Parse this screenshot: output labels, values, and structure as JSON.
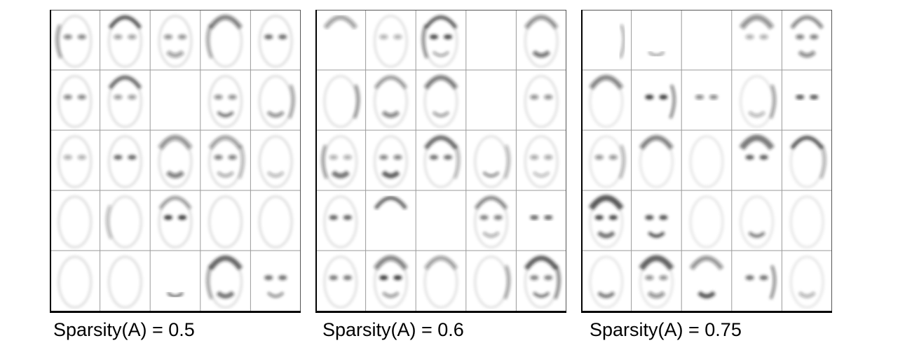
{
  "figure": {
    "grid": {
      "rows": 5,
      "cols": 5
    },
    "colors": {
      "background": "#ffffff",
      "grid_line": "#9a9a9a",
      "frame": "#000000",
      "ink": "#1a1a1a"
    },
    "panels": [
      {
        "caption": "Sparsity(A) = 0.5",
        "sparsity": 0.5
      },
      {
        "caption": "Sparsity(A) = 0.6",
        "sparsity": 0.6
      },
      {
        "caption": "Sparsity(A) = 0.75",
        "sparsity": 0.75
      }
    ]
  }
}
